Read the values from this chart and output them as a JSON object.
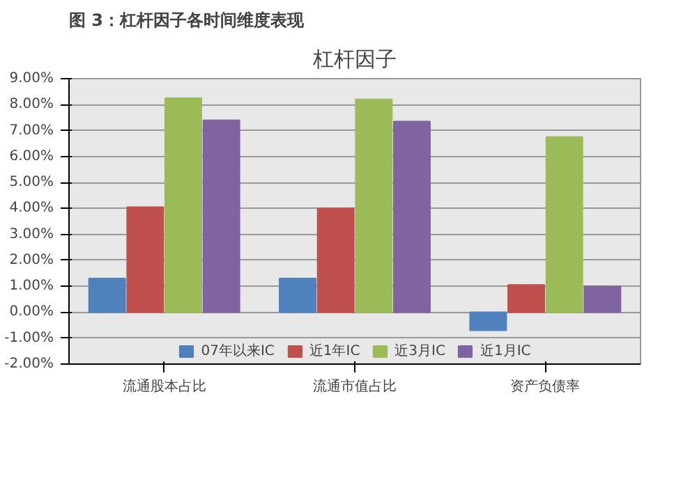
{
  "chart_data": {
    "type": "bar",
    "title": "图 3：杠杆因子各时间维度表现",
    "subtitle": "杠杆因子",
    "categories": [
      "流通股本占比",
      "流通市值占比",
      "资产负债率"
    ],
    "series": [
      {
        "name": "07年以来IC",
        "color": "#4f81bd",
        "values": [
          1.3,
          1.3,
          -0.7
        ]
      },
      {
        "name": "近1年IC",
        "color": "#c0504d",
        "values": [
          4.05,
          4.0,
          1.05
        ]
      },
      {
        "name": "近3月IC",
        "color": "#9bbb59",
        "values": [
          8.25,
          8.2,
          6.75
        ]
      },
      {
        "name": "近1月IC",
        "color": "#8064a2",
        "values": [
          7.4,
          7.35,
          1.0
        ]
      }
    ],
    "ylim": [
      -2,
      9
    ],
    "yticks": [
      {
        "value": -2,
        "label": "-2.00%"
      },
      {
        "value": -1,
        "label": "-1.00%"
      },
      {
        "value": 0,
        "label": "0.00%"
      },
      {
        "value": 1,
        "label": "1.00%"
      },
      {
        "value": 2,
        "label": "2.00%"
      },
      {
        "value": 3,
        "label": "3.00%"
      },
      {
        "value": 4,
        "label": "4.00%"
      },
      {
        "value": 5,
        "label": "5.00%"
      },
      {
        "value": 6,
        "label": "6.00%"
      },
      {
        "value": 7,
        "label": "7.00%"
      },
      {
        "value": 8,
        "label": "8.00%"
      },
      {
        "value": 9,
        "label": "9.00%"
      }
    ],
    "grid": "y",
    "legend": "bottom"
  }
}
